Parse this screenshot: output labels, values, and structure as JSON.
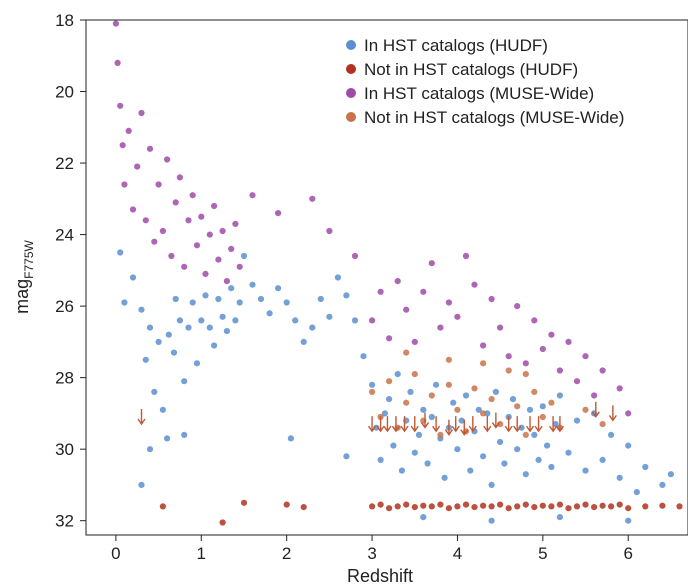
{
  "chart_data": {
    "type": "scatter",
    "title": "",
    "xlabel": "Redshift",
    "ylabel": "mag",
    "ylabel_sub": "F775W",
    "xlim": [
      -0.35,
      6.7
    ],
    "ylim": [
      32.4,
      18.0
    ],
    "y_inverted": true,
    "grid": false,
    "legend_position": "top-right",
    "x_ticks": [
      {
        "value": 0,
        "label": "0"
      },
      {
        "value": 1,
        "label": "1"
      },
      {
        "value": 2,
        "label": "2"
      },
      {
        "value": 3,
        "label": "3"
      },
      {
        "value": 4,
        "label": "4"
      },
      {
        "value": 5,
        "label": "5"
      },
      {
        "value": 6,
        "label": "6"
      }
    ],
    "y_ticks": [
      {
        "value": 18,
        "label": "18"
      },
      {
        "value": 20,
        "label": "20"
      },
      {
        "value": 22,
        "label": "22"
      },
      {
        "value": 24,
        "label": "24"
      },
      {
        "value": 26,
        "label": "26"
      },
      {
        "value": 28,
        "label": "28"
      },
      {
        "value": 30,
        "label": "30"
      },
      {
        "value": 32,
        "label": "32"
      }
    ],
    "series": [
      {
        "name": "In HST catalogs (HUDF)",
        "color": "#5b8fd0",
        "points": [
          [
            0.05,
            24.5
          ],
          [
            0.1,
            25.9
          ],
          [
            0.2,
            25.2
          ],
          [
            0.3,
            26.1
          ],
          [
            0.35,
            27.5
          ],
          [
            0.4,
            26.6
          ],
          [
            0.45,
            28.4
          ],
          [
            0.5,
            27.0
          ],
          [
            0.55,
            28.9
          ],
          [
            0.6,
            29.7
          ],
          [
            0.62,
            26.8
          ],
          [
            0.68,
            27.3
          ],
          [
            0.7,
            25.8
          ],
          [
            0.75,
            26.4
          ],
          [
            0.8,
            28.1
          ],
          [
            0.85,
            26.6
          ],
          [
            0.9,
            25.9
          ],
          [
            0.95,
            27.6
          ],
          [
            1.0,
            26.4
          ],
          [
            1.05,
            25.7
          ],
          [
            1.1,
            26.6
          ],
          [
            1.15,
            27.1
          ],
          [
            1.2,
            25.8
          ],
          [
            1.25,
            26.3
          ],
          [
            1.3,
            26.7
          ],
          [
            1.35,
            25.5
          ],
          [
            1.4,
            26.4
          ],
          [
            1.45,
            25.9
          ],
          [
            1.5,
            24.6
          ],
          [
            1.6,
            25.4
          ],
          [
            1.7,
            25.8
          ],
          [
            1.8,
            26.2
          ],
          [
            1.9,
            25.5
          ],
          [
            2.0,
            25.9
          ],
          [
            2.1,
            26.4
          ],
          [
            2.2,
            27.0
          ],
          [
            2.3,
            26.6
          ],
          [
            2.4,
            25.8
          ],
          [
            2.5,
            26.3
          ],
          [
            2.6,
            25.2
          ],
          [
            2.7,
            25.7
          ],
          [
            2.8,
            26.4
          ],
          [
            2.9,
            27.4
          ],
          [
            3.0,
            28.2
          ],
          [
            3.05,
            29.4
          ],
          [
            3.1,
            30.3
          ],
          [
            3.15,
            29.0
          ],
          [
            3.2,
            28.6
          ],
          [
            3.25,
            29.9
          ],
          [
            3.3,
            27.9
          ],
          [
            3.35,
            30.6
          ],
          [
            3.4,
            29.2
          ],
          [
            3.45,
            28.4
          ],
          [
            3.5,
            30.1
          ],
          [
            3.55,
            29.6
          ],
          [
            3.6,
            28.9
          ],
          [
            3.65,
            30.4
          ],
          [
            3.7,
            29.1
          ],
          [
            3.75,
            28.2
          ],
          [
            3.8,
            29.7
          ],
          [
            3.85,
            30.8
          ],
          [
            3.9,
            29.4
          ],
          [
            3.95,
            28.7
          ],
          [
            4.0,
            30.0
          ],
          [
            4.05,
            29.2
          ],
          [
            4.1,
            28.5
          ],
          [
            4.15,
            30.6
          ],
          [
            4.2,
            29.5
          ],
          [
            4.25,
            28.9
          ],
          [
            4.3,
            30.2
          ],
          [
            4.35,
            29.0
          ],
          [
            4.4,
            31.0
          ],
          [
            4.45,
            28.4
          ],
          [
            4.5,
            29.8
          ],
          [
            4.55,
            30.4
          ],
          [
            4.6,
            29.1
          ],
          [
            4.65,
            28.6
          ],
          [
            4.7,
            30.0
          ],
          [
            4.75,
            29.4
          ],
          [
            4.8,
            30.7
          ],
          [
            4.85,
            28.9
          ],
          [
            4.9,
            29.6
          ],
          [
            4.95,
            30.3
          ],
          [
            5.0,
            28.8
          ],
          [
            5.05,
            29.9
          ],
          [
            5.1,
            30.5
          ],
          [
            5.15,
            29.3
          ],
          [
            5.2,
            28.5
          ],
          [
            5.3,
            30.1
          ],
          [
            5.4,
            29.2
          ],
          [
            5.5,
            30.6
          ],
          [
            5.6,
            29.0
          ],
          [
            5.7,
            30.3
          ],
          [
            5.8,
            29.6
          ],
          [
            5.9,
            30.8
          ],
          [
            6.0,
            29.9
          ],
          [
            6.1,
            31.2
          ],
          [
            6.2,
            30.5
          ],
          [
            6.4,
            31.0
          ],
          [
            6.5,
            30.7
          ],
          [
            3.6,
            31.9
          ],
          [
            4.4,
            32.0
          ],
          [
            5.2,
            31.9
          ],
          [
            6.0,
            32.0
          ],
          [
            0.3,
            31.0
          ],
          [
            0.4,
            30.0
          ],
          [
            2.05,
            29.7
          ],
          [
            2.7,
            30.2
          ],
          [
            0.8,
            29.6
          ]
        ]
      },
      {
        "name": "Not in HST catalogs (HUDF)",
        "color": "#b0321f",
        "points": [
          [
            3.0,
            31.6
          ],
          [
            3.1,
            31.55
          ],
          [
            3.2,
            31.65
          ],
          [
            3.3,
            31.6
          ],
          [
            3.4,
            31.55
          ],
          [
            3.5,
            31.62
          ],
          [
            3.6,
            31.58
          ],
          [
            3.7,
            31.6
          ],
          [
            3.8,
            31.55
          ],
          [
            3.9,
            31.65
          ],
          [
            4.0,
            31.6
          ],
          [
            4.1,
            31.55
          ],
          [
            4.2,
            31.62
          ],
          [
            4.3,
            31.58
          ],
          [
            4.4,
            31.6
          ],
          [
            4.5,
            31.55
          ],
          [
            4.6,
            31.65
          ],
          [
            4.7,
            31.6
          ],
          [
            4.8,
            31.55
          ],
          [
            4.9,
            31.62
          ],
          [
            5.0,
            31.58
          ],
          [
            5.1,
            31.6
          ],
          [
            5.2,
            31.55
          ],
          [
            5.3,
            31.65
          ],
          [
            5.4,
            31.6
          ],
          [
            5.5,
            31.55
          ],
          [
            5.6,
            31.62
          ],
          [
            5.7,
            31.58
          ],
          [
            5.8,
            31.6
          ],
          [
            5.9,
            31.55
          ],
          [
            6.0,
            31.65
          ],
          [
            6.2,
            31.6
          ],
          [
            6.4,
            31.58
          ],
          [
            6.6,
            31.6
          ],
          [
            2.0,
            31.55
          ],
          [
            2.2,
            31.62
          ],
          [
            0.55,
            31.6
          ],
          [
            1.25,
            32.05
          ],
          [
            1.5,
            31.5
          ]
        ]
      },
      {
        "name": "In HST catalogs (MUSE-Wide)",
        "color": "#a04aa8",
        "points": [
          [
            0.0,
            18.1
          ],
          [
            0.02,
            19.2
          ],
          [
            0.05,
            20.4
          ],
          [
            0.08,
            21.5
          ],
          [
            0.1,
            22.6
          ],
          [
            0.15,
            21.1
          ],
          [
            0.2,
            23.3
          ],
          [
            0.25,
            22.1
          ],
          [
            0.3,
            20.6
          ],
          [
            0.35,
            23.6
          ],
          [
            0.4,
            21.6
          ],
          [
            0.45,
            24.2
          ],
          [
            0.5,
            22.6
          ],
          [
            0.55,
            23.9
          ],
          [
            0.6,
            21.9
          ],
          [
            0.65,
            24.6
          ],
          [
            0.7,
            23.1
          ],
          [
            0.75,
            22.4
          ],
          [
            0.8,
            24.9
          ],
          [
            0.85,
            23.6
          ],
          [
            0.9,
            22.9
          ],
          [
            0.95,
            24.3
          ],
          [
            1.0,
            23.5
          ],
          [
            1.05,
            25.1
          ],
          [
            1.1,
            24.0
          ],
          [
            1.15,
            23.2
          ],
          [
            1.2,
            24.7
          ],
          [
            1.25,
            23.9
          ],
          [
            1.3,
            25.3
          ],
          [
            1.35,
            24.4
          ],
          [
            1.4,
            23.7
          ],
          [
            1.45,
            24.9
          ],
          [
            1.6,
            22.9
          ],
          [
            1.9,
            23.4
          ],
          [
            2.3,
            23.0
          ],
          [
            2.5,
            23.9
          ],
          [
            2.8,
            24.6
          ],
          [
            3.0,
            26.4
          ],
          [
            3.1,
            25.6
          ],
          [
            3.2,
            26.9
          ],
          [
            3.3,
            25.3
          ],
          [
            3.4,
            26.1
          ],
          [
            3.5,
            27.0
          ],
          [
            3.6,
            25.6
          ],
          [
            3.7,
            24.8
          ],
          [
            3.8,
            26.6
          ],
          [
            3.9,
            25.9
          ],
          [
            4.0,
            26.3
          ],
          [
            4.1,
            24.6
          ],
          [
            4.2,
            25.4
          ],
          [
            4.3,
            27.1
          ],
          [
            4.4,
            25.8
          ],
          [
            4.5,
            26.6
          ],
          [
            4.6,
            27.4
          ],
          [
            4.7,
            26.0
          ],
          [
            4.8,
            27.6
          ],
          [
            4.9,
            26.4
          ],
          [
            5.0,
            27.2
          ],
          [
            5.1,
            26.8
          ],
          [
            5.2,
            27.8
          ],
          [
            5.3,
            27.0
          ],
          [
            5.4,
            28.1
          ],
          [
            5.5,
            27.4
          ],
          [
            5.6,
            28.5
          ],
          [
            5.7,
            27.8
          ],
          [
            5.9,
            28.3
          ],
          [
            6.0,
            29.0
          ]
        ]
      },
      {
        "name": "Not in HST catalogs (MUSE-Wide)",
        "color": "#c8734a",
        "points": [
          [
            3.0,
            28.4
          ],
          [
            3.1,
            29.1
          ],
          [
            3.2,
            28.1
          ],
          [
            3.3,
            29.4
          ],
          [
            3.4,
            28.7
          ],
          [
            3.5,
            27.9
          ],
          [
            3.6,
            29.2
          ],
          [
            3.7,
            28.5
          ],
          [
            3.8,
            29.6
          ],
          [
            3.9,
            28.2
          ],
          [
            4.0,
            28.9
          ],
          [
            4.1,
            29.5
          ],
          [
            4.2,
            28.3
          ],
          [
            4.3,
            29.0
          ],
          [
            4.4,
            28.6
          ],
          [
            4.5,
            29.3
          ],
          [
            4.6,
            27.8
          ],
          [
            4.7,
            28.8
          ],
          [
            4.8,
            29.6
          ],
          [
            4.9,
            28.4
          ],
          [
            5.0,
            29.1
          ],
          [
            5.1,
            28.7
          ],
          [
            5.2,
            29.4
          ],
          [
            5.5,
            28.9
          ],
          [
            5.7,
            29.3
          ],
          [
            3.4,
            27.3
          ],
          [
            3.9,
            27.5
          ],
          [
            4.3,
            27.6
          ],
          [
            4.8,
            27.9
          ]
        ]
      }
    ],
    "upper_limits": {
      "color": "#c05838",
      "points": [
        [
          0.3,
          29.1
        ],
        [
          3.0,
          29.3
        ],
        [
          3.1,
          29.3
        ],
        [
          3.18,
          29.3
        ],
        [
          3.28,
          29.3
        ],
        [
          3.38,
          29.3
        ],
        [
          3.5,
          29.3
        ],
        [
          3.62,
          29.2
        ],
        [
          3.75,
          29.3
        ],
        [
          3.9,
          29.4
        ],
        [
          3.98,
          29.3
        ],
        [
          4.08,
          29.4
        ],
        [
          4.18,
          29.3
        ],
        [
          4.35,
          29.3
        ],
        [
          4.45,
          29.2
        ],
        [
          4.6,
          29.3
        ],
        [
          4.7,
          29.3
        ],
        [
          4.85,
          29.3
        ],
        [
          4.95,
          29.3
        ],
        [
          5.12,
          29.3
        ],
        [
          5.2,
          29.3
        ],
        [
          5.62,
          28.9
        ],
        [
          5.82,
          29.0
        ]
      ]
    }
  }
}
